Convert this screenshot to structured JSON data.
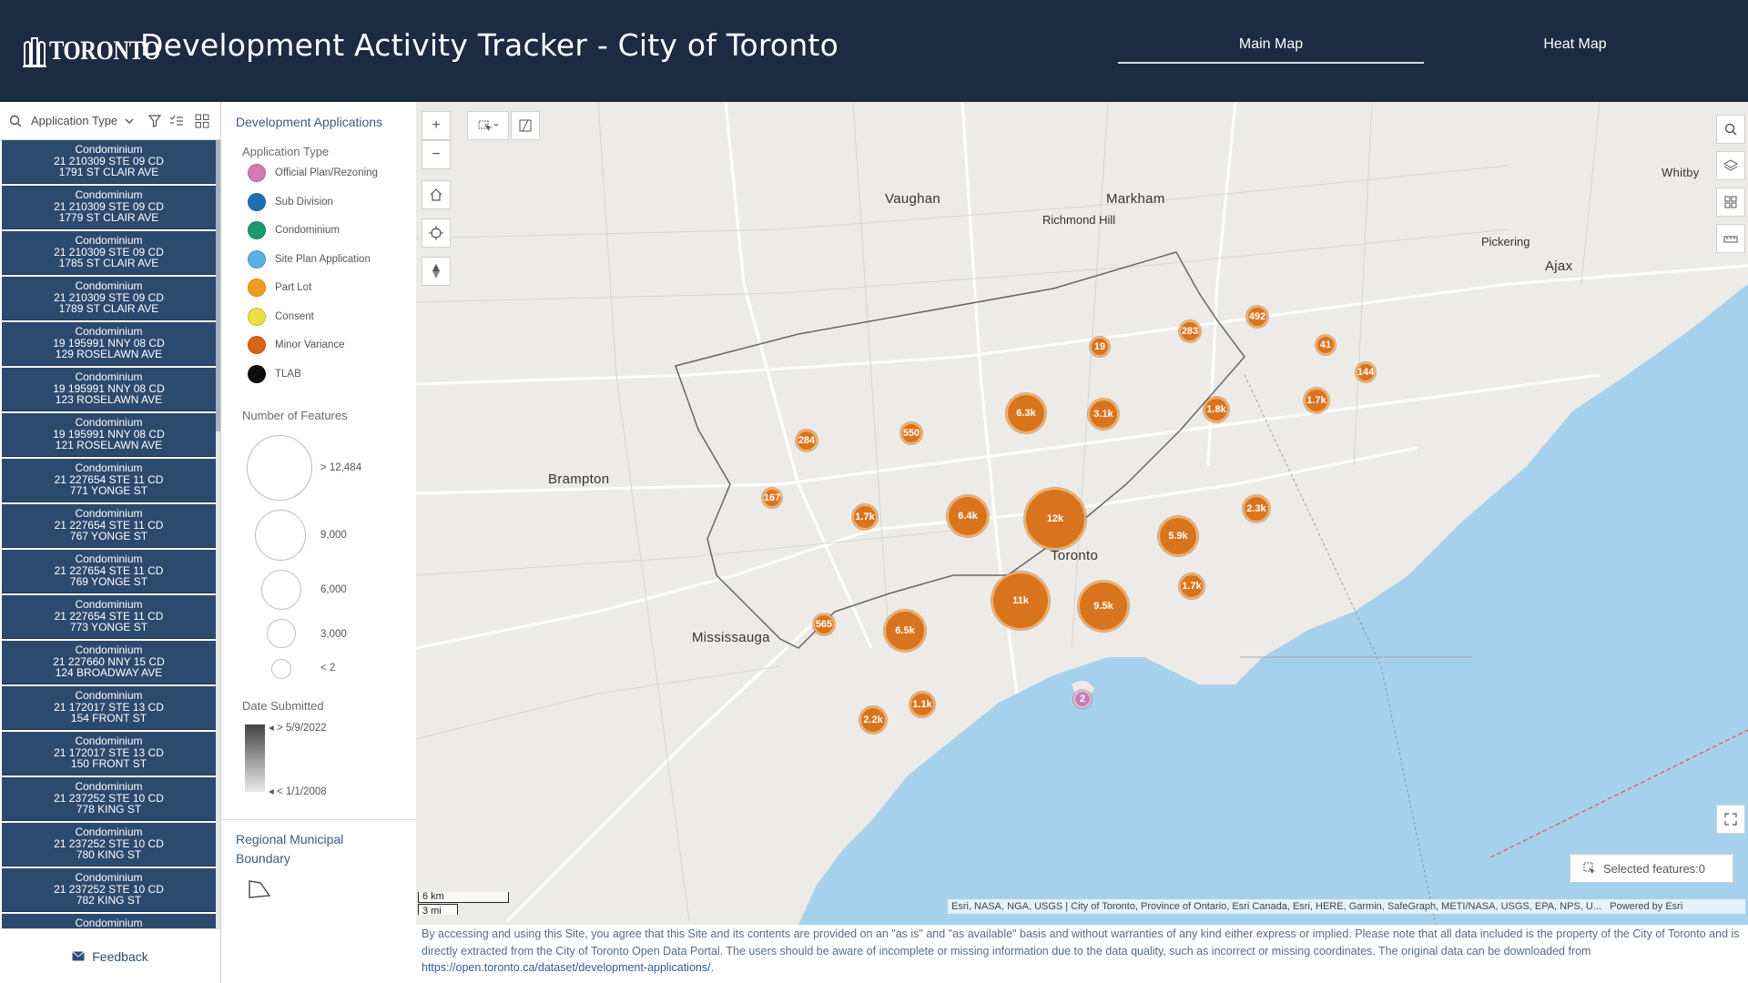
{
  "header": {
    "logo_text": "TORONTO",
    "title": "Development Activity Tracker - City of Toronto",
    "tabs": [
      {
        "label": "Main Map",
        "active": true
      },
      {
        "label": "Heat Map",
        "active": false
      }
    ]
  },
  "list": {
    "search_label": "Application Type",
    "items": [
      {
        "type": "Condominium",
        "id": "21 210309 STE 09 CD",
        "addr": "1791 ST CLAIR AVE"
      },
      {
        "type": "Condominium",
        "id": "21 210309 STE 09 CD",
        "addr": "1779 ST CLAIR AVE"
      },
      {
        "type": "Condominium",
        "id": "21 210309 STE 09 CD",
        "addr": "1785 ST CLAIR AVE"
      },
      {
        "type": "Condominium",
        "id": "21 210309 STE 09 CD",
        "addr": "1789 ST CLAIR AVE"
      },
      {
        "type": "Condominium",
        "id": "19 195991 NNY 08 CD",
        "addr": "129 ROSELAWN AVE"
      },
      {
        "type": "Condominium",
        "id": "19 195991 NNY 08 CD",
        "addr": "123 ROSELAWN AVE"
      },
      {
        "type": "Condominium",
        "id": "19 195991 NNY 08 CD",
        "addr": "121 ROSELAWN AVE"
      },
      {
        "type": "Condominium",
        "id": "21 227654 STE 11 CD",
        "addr": "771 YONGE ST"
      },
      {
        "type": "Condominium",
        "id": "21 227654 STE 11 CD",
        "addr": "767 YONGE ST"
      },
      {
        "type": "Condominium",
        "id": "21 227654 STE 11 CD",
        "addr": "769 YONGE ST"
      },
      {
        "type": "Condominium",
        "id": "21 227654 STE 11 CD",
        "addr": "773 YONGE ST"
      },
      {
        "type": "Condominium",
        "id": "21 227660 NNY 15 CD",
        "addr": "124 BROADWAY AVE"
      },
      {
        "type": "Condominium",
        "id": "21 172017 STE 13 CD",
        "addr": "154 FRONT ST"
      },
      {
        "type": "Condominium",
        "id": "21 172017 STE 13 CD",
        "addr": "150 FRONT ST"
      },
      {
        "type": "Condominium",
        "id": "21 237252 STE 10 CD",
        "addr": "778 KING ST"
      },
      {
        "type": "Condominium",
        "id": "21 237252 STE 10 CD",
        "addr": "780 KING ST"
      },
      {
        "type": "Condominium",
        "id": "21 237252 STE 10 CD",
        "addr": "782 KING ST"
      },
      {
        "type": "Condominium",
        "id": "",
        "addr": ""
      }
    ],
    "feedback_label": "Feedback"
  },
  "legend": {
    "title": "Development Applications",
    "type_heading": "Application Type",
    "types": [
      {
        "label": "Official Plan/Rezoning",
        "color": "#d17bb0"
      },
      {
        "label": "Sub Division",
        "color": "#1f6fb5"
      },
      {
        "label": "Condominium",
        "color": "#1a9a6c"
      },
      {
        "label": "Site Plan Application",
        "color": "#5ab1e6"
      },
      {
        "label": "Part Lot",
        "color": "#f39c1c"
      },
      {
        "label": "Consent",
        "color": "#ecde42"
      },
      {
        "label": "Minor Variance",
        "color": "#d8641a"
      },
      {
        "label": "TLAB",
        "color": "#0d0d0d"
      }
    ],
    "size_heading": "Number of Features",
    "sizes": [
      "> 12,484",
      "9,000",
      "6,000",
      "3,000",
      "< 2"
    ],
    "date_heading": "Date Submitted",
    "date_high": "> 5/9/2022",
    "date_low": "< 1/1/2008",
    "boundary_title": "Regional Municipal Boundary"
  },
  "map": {
    "places": [
      {
        "label": "Vaughan",
        "big": true
      },
      {
        "label": "Markham",
        "big": true
      },
      {
        "label": "Brampton",
        "big": true
      },
      {
        "label": "Mississauga",
        "big": true
      },
      {
        "label": "Toronto",
        "big": true
      },
      {
        "label": "Richmond Hill",
        "big": true
      },
      {
        "label": "Pickering",
        "big": false
      },
      {
        "label": "Ajax",
        "big": true
      },
      {
        "label": "Whitby",
        "big": true
      }
    ],
    "clusters": [
      {
        "label": "492"
      },
      {
        "label": "283"
      },
      {
        "label": "19"
      },
      {
        "label": "41"
      },
      {
        "label": "144"
      },
      {
        "label": "1.7k"
      },
      {
        "label": "6.3k"
      },
      {
        "label": "3.1k"
      },
      {
        "label": "1.8k"
      },
      {
        "label": "550"
      },
      {
        "label": "284"
      },
      {
        "label": "167"
      },
      {
        "label": "1.7k"
      },
      {
        "label": "6.4k"
      },
      {
        "label": "12k"
      },
      {
        "label": "2.3k"
      },
      {
        "label": "5.9k"
      },
      {
        "label": "1.7k"
      },
      {
        "label": "11k"
      },
      {
        "label": "9.5k"
      },
      {
        "label": "565"
      },
      {
        "label": "6.5k"
      },
      {
        "label": "1.1k"
      },
      {
        "label": "2.2k"
      },
      {
        "label": "2"
      }
    ],
    "scale_km": "6 km",
    "scale_mi": "3 mi",
    "attribution": "Esri, NASA, NGA, USGS | City of Toronto, Province of Ontario, Esri Canada, Esri, HERE, Garmin, SafeGraph, METI/NASA, USGS, EPA, NPS, U...",
    "powered_by": "Powered by Esri",
    "selected_features": "Selected features:0"
  },
  "footer": {
    "text": "By accessing and using this Site, you agree that this Site and its contents are provided on an \"as is\" and \"as available\" basis and without warranties of any kind either express or implied.   Please note that all data included is the property of the City of Toronto and is directly extracted from the City of Toronto Open Data Portal. The users should be aware of incomplete or missing information due to the data quality, such as incorrect or missing coordinates. The original data can be downloaded from ",
    "link": "https://open.toronto.ca/dataset/development-applications/",
    "tail": "."
  },
  "colors": {
    "header_bg": "#1c2b42",
    "list_item_bg": "#2c4a6e",
    "cluster": "#d9741e",
    "water": "#a6d1ec",
    "land": "#ecebe7"
  }
}
